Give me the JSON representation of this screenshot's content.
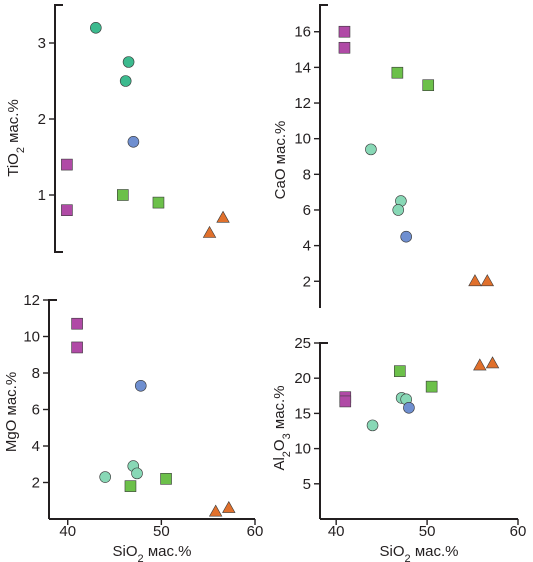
{
  "colors": {
    "basalt_magenta": "#b04aa6",
    "basalt_green": "#6cc04a",
    "teal_dark": "#3cba8e",
    "teal_light": "#88d8b6",
    "blue": "#6f8fd0",
    "andesite_orange": "#e0702c"
  },
  "chart_data": [
    {
      "type": "scatter",
      "panel": "top-left",
      "ylabel": "TiO",
      "ylabel_sub": "2",
      "ylabel_unit": " мас.%",
      "xlim": [
        38,
        60
      ],
      "ylim": [
        0.25,
        3.5
      ],
      "yticks": [
        1,
        2,
        3
      ],
      "yticklabels": [
        "1",
        "2",
        "3"
      ],
      "show_x_axis": false,
      "series": [
        {
          "marker": "square",
          "color": "#b04aa6",
          "x": [
            41,
            41
          ],
          "y": [
            1.4,
            0.8
          ]
        },
        {
          "marker": "square",
          "color": "#6cc04a",
          "x": [
            46.8,
            50.5
          ],
          "y": [
            1.0,
            0.9
          ]
        },
        {
          "marker": "circle",
          "color": "#3cba8e",
          "x": [
            44,
            47.4,
            47.1
          ],
          "y": [
            3.2,
            2.75,
            2.5
          ]
        },
        {
          "marker": "circle",
          "color": "#6f8fd0",
          "x": [
            47.9
          ],
          "y": [
            1.7
          ]
        },
        {
          "marker": "triangle",
          "color": "#e0702c",
          "x": [
            55.8,
            57.2
          ],
          "y": [
            0.5,
            0.7
          ]
        }
      ]
    },
    {
      "type": "scatter",
      "panel": "top-right",
      "ylabel": "CaO мас.%",
      "xlim": [
        38,
        60
      ],
      "ylim": [
        0.5,
        17.5
      ],
      "yticks": [
        2,
        4,
        6,
        8,
        10,
        12,
        14,
        16
      ],
      "yticklabels": [
        "2",
        "4",
        "6",
        "8",
        "10",
        "12",
        "14",
        "16"
      ],
      "show_x_axis": false,
      "series": [
        {
          "marker": "square",
          "color": "#b04aa6",
          "x": [
            41,
            41
          ],
          "y": [
            16.0,
            15.1
          ]
        },
        {
          "marker": "square",
          "color": "#6cc04a",
          "x": [
            47.0,
            50.5
          ],
          "y": [
            13.7,
            13.0
          ]
        },
        {
          "marker": "circle",
          "color": "#88d8b6",
          "x": [
            44,
            47.4,
            47.1
          ],
          "y": [
            9.4,
            6.5,
            6.0
          ]
        },
        {
          "marker": "circle",
          "color": "#6f8fd0",
          "x": [
            48.0
          ],
          "y": [
            4.5
          ]
        },
        {
          "marker": "triangle",
          "color": "#e0702c",
          "x": [
            55.8,
            57.2
          ],
          "y": [
            2.0,
            2.0
          ]
        }
      ]
    },
    {
      "type": "scatter",
      "panel": "bottom-left",
      "ylabel": "MgO мас.%",
      "xlabel": "SiO",
      "xlabel_sub": "2",
      "xlabel_unit": " мас.%",
      "xlim": [
        38,
        60
      ],
      "ylim": [
        0,
        12
      ],
      "xticks": [
        40,
        50,
        60
      ],
      "xticklabels": [
        "40",
        "50",
        "60"
      ],
      "yticks": [
        2,
        4,
        6,
        8,
        10,
        12
      ],
      "yticklabels": [
        "2",
        "4",
        "6",
        "8",
        "10",
        "12"
      ],
      "show_x_axis": true,
      "series": [
        {
          "marker": "square",
          "color": "#b04aa6",
          "x": [
            41,
            41
          ],
          "y": [
            10.7,
            9.4
          ]
        },
        {
          "marker": "square",
          "color": "#6cc04a",
          "x": [
            46.7,
            50.5
          ],
          "y": [
            1.8,
            2.2
          ]
        },
        {
          "marker": "circle",
          "color": "#88d8b6",
          "x": [
            44,
            47.0,
            47.4
          ],
          "y": [
            2.3,
            2.9,
            2.5
          ]
        },
        {
          "marker": "circle",
          "color": "#6f8fd0",
          "x": [
            47.8
          ],
          "y": [
            7.3
          ]
        },
        {
          "marker": "triangle",
          "color": "#e0702c",
          "x": [
            55.8,
            57.2
          ],
          "y": [
            0.4,
            0.6
          ]
        }
      ]
    },
    {
      "type": "scatter",
      "panel": "bottom-right",
      "ylabel": "Al",
      "ylabel_sub": "2",
      "ylabel_mid": "O",
      "ylabel_sub2": "3",
      "ylabel_unit": " мас.%",
      "xlabel": "SiO",
      "xlabel_sub": "2",
      "xlabel_unit": " мас.%",
      "xlim": [
        38,
        60
      ],
      "ylim": [
        0,
        25
      ],
      "xticks": [
        40,
        50,
        60
      ],
      "xticklabels": [
        "40",
        "50",
        "60"
      ],
      "yticks": [
        5,
        10,
        15,
        20,
        25
      ],
      "yticklabels": [
        "5",
        "10",
        "15",
        "20",
        "25"
      ],
      "show_x_axis": true,
      "series": [
        {
          "marker": "square",
          "color": "#b04aa6",
          "x": [
            41,
            41
          ],
          "y": [
            17.3,
            16.7
          ]
        },
        {
          "marker": "square",
          "color": "#6cc04a",
          "x": [
            47.0,
            50.5
          ],
          "y": [
            21.0,
            18.8
          ]
        },
        {
          "marker": "circle",
          "color": "#88d8b6",
          "x": [
            44,
            47.2,
            47.7
          ],
          "y": [
            13.3,
            17.2,
            17.0
          ]
        },
        {
          "marker": "circle",
          "color": "#6f8fd0",
          "x": [
            48.0
          ],
          "y": [
            15.8
          ]
        },
        {
          "marker": "triangle",
          "color": "#e0702c",
          "x": [
            55.8,
            57.2
          ],
          "y": [
            21.8,
            22.1
          ]
        }
      ]
    }
  ]
}
